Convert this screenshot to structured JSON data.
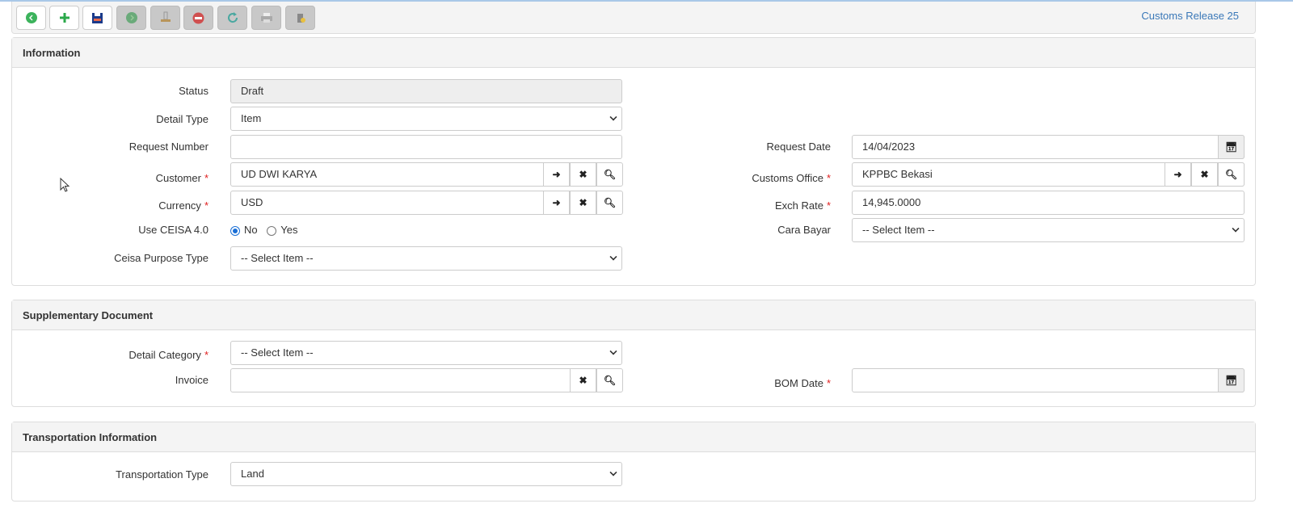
{
  "toolbar": {
    "buttons": [
      {
        "name": "back-button",
        "icon": "chevron-left-circle-icon",
        "color": "#3cb35c",
        "disabled": false
      },
      {
        "name": "add-button",
        "icon": "plus-icon",
        "color": "#2aa84a",
        "disabled": false
      },
      {
        "name": "save-button",
        "icon": "floppy-disk-icon",
        "color": "#1a3a8a",
        "disabled": false
      },
      {
        "name": "next-button",
        "icon": "chevron-right-circle-icon",
        "color": "#6aaa7a",
        "disabled": true
      },
      {
        "name": "stamp-button",
        "icon": "stamp-icon",
        "color": "#b8955a",
        "disabled": true
      },
      {
        "name": "cancel-button",
        "icon": "no-entry-icon",
        "color": "#d05050",
        "disabled": true
      },
      {
        "name": "refresh-button",
        "icon": "refresh-icon",
        "color": "#4aa8a0",
        "disabled": true
      },
      {
        "name": "print-button",
        "icon": "printer-icon",
        "color": "#aaa",
        "disabled": true
      },
      {
        "name": "delete-button",
        "icon": "trash-icon",
        "color": "#888",
        "disabled": true
      }
    ],
    "title": "Customs Release 25"
  },
  "information": {
    "title": "Information",
    "status": {
      "label": "Status",
      "value": "Draft"
    },
    "detail_type": {
      "label": "Detail Type",
      "value": "Item"
    },
    "request_number": {
      "label": "Request Number",
      "value": ""
    },
    "customer": {
      "label": "Customer",
      "value": "UD DWI KARYA"
    },
    "currency": {
      "label": "Currency",
      "value": "USD"
    },
    "use_ceisa": {
      "label": "Use CEISA 4.0",
      "options": [
        "No",
        "Yes"
      ],
      "selected": "No"
    },
    "ceisa_purpose": {
      "label": "Ceisa Purpose Type",
      "value": "-- Select Item --"
    },
    "request_date": {
      "label": "Request Date",
      "value": "14/04/2023"
    },
    "customs_office": {
      "label": "Customs Office",
      "value": "KPPBC Bekasi"
    },
    "exch_rate": {
      "label": "Exch Rate",
      "value": "14,945.0000"
    },
    "cara_bayar": {
      "label": "Cara Bayar",
      "value": "-- Select Item --"
    }
  },
  "supplementary": {
    "title": "Supplementary Document",
    "detail_category": {
      "label": "Detail Category",
      "value": "-- Select Item --"
    },
    "invoice": {
      "label": "Invoice",
      "value": ""
    },
    "bom_date": {
      "label": "BOM Date",
      "value": ""
    }
  },
  "transportation": {
    "title": "Transportation Information",
    "type": {
      "label": "Transportation Type",
      "value": "Land"
    }
  },
  "required_mark": "*"
}
